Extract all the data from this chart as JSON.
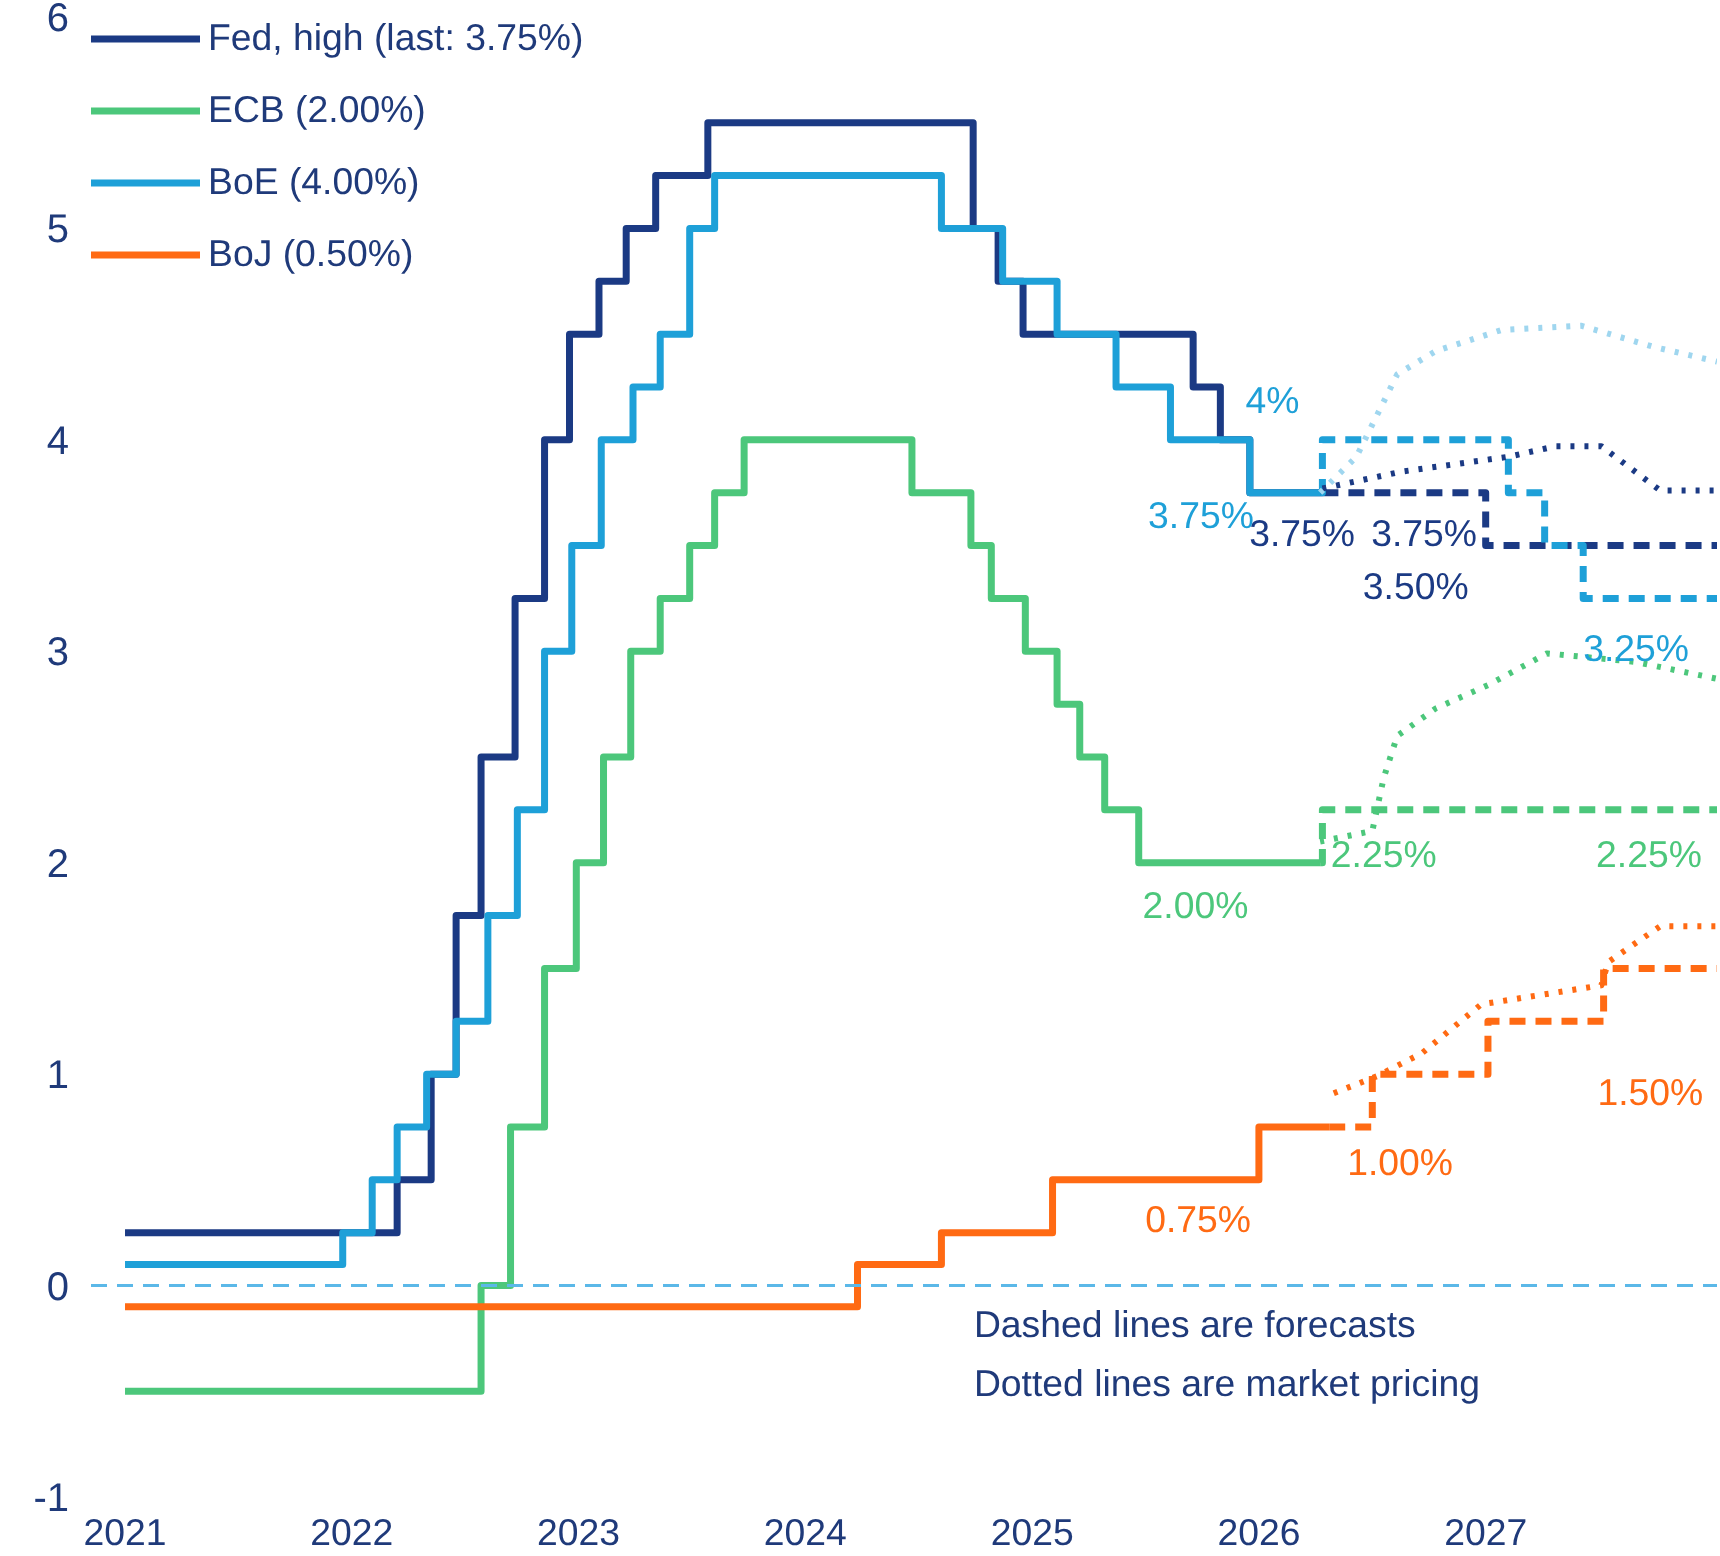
{
  "chart_data": {
    "type": "step",
    "xlim": [
      2020.85,
      2028.02
    ],
    "ylim": [
      -1,
      6
    ],
    "xticks": [
      2021,
      2022,
      2023,
      2024,
      2025,
      2026,
      2027
    ],
    "yticks": [
      -1,
      0,
      1,
      2,
      3,
      4,
      5,
      6
    ],
    "grid": false,
    "legend": "top left",
    "series": [
      {
        "name": "Fed, high (last: 3.75%)",
        "color": "#1b3a84",
        "line_style": "solid",
        "x": [
          2021.0,
          2022.2,
          2022.35,
          2022.46,
          2022.57,
          2022.72,
          2022.85,
          2022.96,
          2023.09,
          2023.21,
          2023.34,
          2023.57,
          2024.74,
          2024.85,
          2024.96,
          2025.71,
          2025.83,
          2025.96,
          2026.28
        ],
        "values": [
          0.25,
          0.5,
          1.0,
          1.75,
          2.5,
          3.25,
          4.0,
          4.5,
          4.75,
          5.0,
          5.25,
          5.5,
          5.0,
          4.75,
          4.5,
          4.25,
          4.0,
          3.75,
          3.75
        ],
        "value_labels": [
          null,
          null,
          null,
          null,
          null,
          null,
          null,
          null,
          null,
          null,
          null,
          null,
          null,
          null,
          null,
          null,
          null,
          "3.75%",
          null
        ]
      },
      {
        "name": "ECB (2.00%)",
        "color": "#4cc77b",
        "line_style": "solid",
        "x": [
          2021.0,
          2022.57,
          2022.7,
          2022.85,
          2022.99,
          2023.11,
          2023.23,
          2023.36,
          2023.49,
          2023.6,
          2023.73,
          2024.47,
          2024.73,
          2024.82,
          2024.97,
          2025.11,
          2025.21,
          2025.32,
          2025.47,
          2026.27
        ],
        "values": [
          -0.5,
          0.0,
          0.75,
          1.5,
          2.0,
          2.5,
          3.0,
          3.25,
          3.5,
          3.75,
          4.0,
          3.75,
          3.5,
          3.25,
          3.0,
          2.75,
          2.5,
          2.25,
          2.0,
          2.0
        ],
        "value_labels": [
          null,
          null,
          null,
          null,
          null,
          null,
          null,
          null,
          null,
          null,
          null,
          null,
          null,
          null,
          null,
          null,
          null,
          null,
          "2.00%",
          null
        ]
      },
      {
        "name": "BoE (4.00%)",
        "color": "#1ea0d8",
        "line_style": "solid",
        "x": [
          2021.0,
          2021.96,
          2022.09,
          2022.2,
          2022.33,
          2022.46,
          2022.6,
          2022.73,
          2022.85,
          2022.97,
          2023.1,
          2023.24,
          2023.36,
          2023.49,
          2023.6,
          2024.6,
          2024.87,
          2025.11,
          2025.37,
          2025.61,
          2025.96,
          2026.27
        ],
        "values": [
          0.1,
          0.25,
          0.5,
          0.75,
          1.0,
          1.25,
          1.75,
          2.25,
          3.0,
          3.5,
          4.0,
          4.25,
          4.5,
          5.0,
          5.25,
          5.0,
          4.75,
          4.5,
          4.25,
          4.0,
          3.75,
          3.75
        ],
        "value_labels": [
          null,
          null,
          null,
          null,
          null,
          null,
          null,
          null,
          null,
          null,
          null,
          null,
          null,
          null,
          null,
          null,
          null,
          null,
          null,
          null,
          "3.75%",
          null
        ]
      },
      {
        "name": "BoJ (0.50%)",
        "color": "#ff6a13",
        "line_style": "solid",
        "x": [
          2021.0,
          2024.23,
          2024.6,
          2025.09,
          2026.0,
          2026.31
        ],
        "values": [
          -0.1,
          0.1,
          0.25,
          0.5,
          0.75,
          0.75
        ],
        "value_labels": [
          null,
          null,
          null,
          null,
          "0.75%",
          null
        ]
      },
      {
        "color": "#1b3a84",
        "line_style": "dashed",
        "x": [
          2026.28,
          2027.0,
          2028.02
        ],
        "values": [
          3.75,
          3.5,
          3.5
        ],
        "value_labels": [
          "3.75%",
          "3.50%",
          null
        ]
      },
      {
        "color": "#1ea0d8",
        "line_style": "dashed",
        "x": [
          2026.27,
          2026.28,
          2027.1,
          2027.26,
          2027.43,
          2028.02
        ],
        "values": [
          3.75,
          4.0,
          3.75,
          3.5,
          3.25,
          3.25
        ],
        "value_labels": [
          null,
          "4%",
          null,
          null,
          "3.25%",
          null
        ]
      },
      {
        "color": "#4cc77b",
        "line_style": "dashed",
        "x": [
          2026.27,
          2026.28,
          2028.02
        ],
        "values": [
          2.0,
          2.25,
          2.25
        ],
        "value_labels": [
          null,
          "2.25%",
          "2.25%"
        ]
      },
      {
        "color": "#ff6a13",
        "line_style": "dashed",
        "x": [
          2026.31,
          2026.5,
          2027.01,
          2027.52,
          2028.02
        ],
        "values": [
          0.75,
          1.0,
          1.25,
          1.5,
          1.5
        ],
        "value_labels": [
          null,
          "1.00%",
          null,
          "1.50%",
          null
        ]
      },
      {
        "type": "line",
        "color": "#1b3a84",
        "line_style": "dotted",
        "x": [
          2026.28,
          2026.63,
          2027.1,
          2027.31,
          2027.51,
          2027.77,
          2028.02
        ],
        "values": [
          3.77,
          3.85,
          3.92,
          3.97,
          3.97,
          3.76,
          3.76
        ]
      },
      {
        "type": "line",
        "color": "#9fd6ef",
        "line_style": "dotted",
        "x": [
          2026.27,
          2026.43,
          2026.61,
          2026.78,
          2027.07,
          2027.42,
          2027.74,
          2028.02
        ],
        "values": [
          3.75,
          3.92,
          4.31,
          4.42,
          4.52,
          4.54,
          4.44,
          4.37
        ]
      },
      {
        "type": "line",
        "color": "#4cc77b",
        "line_style": "dotted",
        "x": [
          2026.27,
          2026.5,
          2026.55,
          2026.61,
          2026.78,
          2027.01,
          2027.27,
          2027.66,
          2028.02
        ],
        "values": [
          2.1,
          2.15,
          2.4,
          2.6,
          2.73,
          2.84,
          2.99,
          2.95,
          2.87
        ]
      },
      {
        "type": "line",
        "color": "#ff6a13",
        "line_style": "dotted",
        "x": [
          2026.33,
          2026.52,
          2026.72,
          2026.98,
          2027.51,
          2027.54,
          2027.77,
          2028.02
        ],
        "values": [
          0.91,
          0.99,
          1.1,
          1.33,
          1.42,
          1.53,
          1.7,
          1.7
        ]
      }
    ],
    "ref_lines": [
      {
        "axis": "y",
        "value": 0,
        "color": "#5bb8e8",
        "line_style": "dashed"
      }
    ],
    "annotations": [
      "Dashed lines are forecasts",
      "Dotted lines are market pricing"
    ]
  }
}
